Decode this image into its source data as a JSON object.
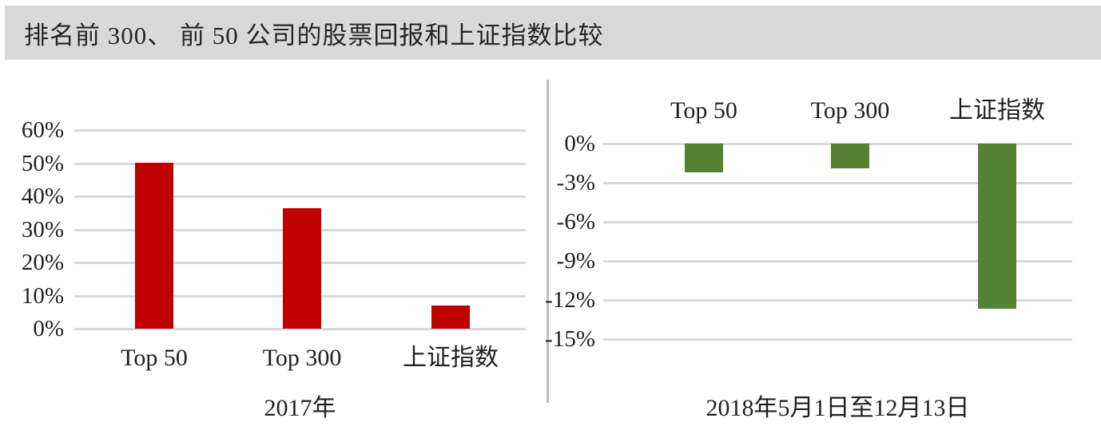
{
  "header": {
    "title": "排名前 300、 前 50 公司的股票回报和上证指数比较"
  },
  "colors": {
    "banner_bg": "#D9D9D9",
    "gridline": "#D9D9D9",
    "divider": "#BFBFBF",
    "bar_red": "#C00000",
    "bar_green": "#548235",
    "text": "#202020"
  },
  "chart_data": [
    {
      "type": "bar",
      "title": "2017年",
      "categories": [
        "Top 50",
        "Top 300",
        "上证指数"
      ],
      "values": [
        50.2,
        36.5,
        6.9
      ],
      "unit": "percent",
      "bar_color": "#C00000",
      "ylim": [
        0,
        60
      ],
      "yticks": [
        60,
        50,
        40,
        30,
        20,
        10,
        0
      ],
      "ytick_labels": [
        "60%",
        "50%",
        "40%",
        "30%",
        "20%",
        "10%",
        "0%"
      ],
      "xlabel": "2017年",
      "ylabel": "",
      "grid": true,
      "legend": "none",
      "category_label_position": "below"
    },
    {
      "type": "bar",
      "title": "2018年5月1日至12月13日",
      "categories": [
        "Top 50",
        "Top 300",
        "上证指数"
      ],
      "values": [
        -2.2,
        -1.9,
        -12.7
      ],
      "unit": "percent",
      "bar_color": "#548235",
      "ylim": [
        -15,
        0
      ],
      "yticks": [
        0,
        -3,
        -6,
        -9,
        -12,
        -15
      ],
      "ytick_labels": [
        "0%",
        "-3%",
        "-6%",
        "-9%",
        "-12%",
        "-15%"
      ],
      "xlabel": "2018年5月1日至12月13日",
      "ylabel": "",
      "grid": true,
      "legend": "none",
      "category_label_position": "above"
    }
  ]
}
